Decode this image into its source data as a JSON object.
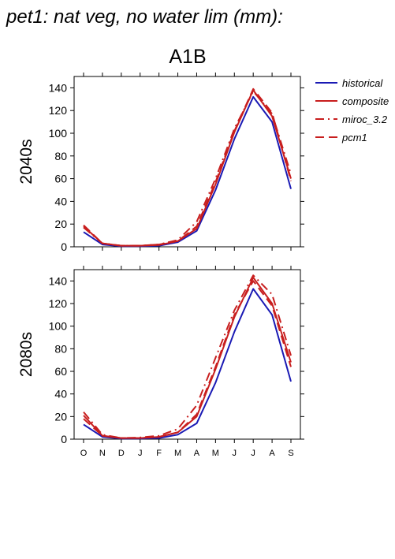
{
  "figure_title": "pet1: nat veg, no water lim (mm):",
  "scenario_title": "A1B",
  "colors": {
    "historical": "#1a1ab4",
    "future": "#c81e1e"
  },
  "legend": [
    {
      "label": "historical",
      "color": "#1a1ab4",
      "dash": "solid"
    },
    {
      "label": "composite",
      "color": "#c81e1e",
      "dash": "solid"
    },
    {
      "label": "miroc_3.2",
      "color": "#c81e1e",
      "dash": "dashdot"
    },
    {
      "label": "pcm1",
      "color": "#c81e1e",
      "dash": "dash"
    }
  ],
  "chart_data": [
    {
      "type": "line",
      "row_label": "2040s",
      "categories": [
        "O",
        "N",
        "D",
        "J",
        "F",
        "M",
        "A",
        "M",
        "J",
        "J",
        "A",
        "S"
      ],
      "ylim": [
        0,
        150
      ],
      "yticks": [
        0,
        20,
        40,
        60,
        80,
        100,
        120,
        140
      ],
      "series": [
        {
          "name": "historical",
          "color": "#1a1ab4",
          "dash": "solid",
          "values": [
            13,
            2,
            0.5,
            0.5,
            1,
            4,
            14,
            50,
            95,
            132,
            110,
            51
          ]
        },
        {
          "name": "composite",
          "color": "#c81e1e",
          "dash": "solid",
          "values": [
            18,
            3,
            1,
            1,
            1.5,
            5,
            16,
            55,
            101,
            138,
            115,
            60
          ]
        },
        {
          "name": "miroc_3.2",
          "color": "#c81e1e",
          "dash": "dashdot",
          "values": [
            17,
            3,
            1,
            1,
            2,
            6,
            22,
            60,
            104,
            137,
            117,
            64
          ]
        },
        {
          "name": "pcm1",
          "color": "#c81e1e",
          "dash": "dash",
          "values": [
            19,
            3,
            1,
            1,
            2,
            5,
            18,
            57,
            102,
            139,
            118,
            58
          ]
        }
      ]
    },
    {
      "type": "line",
      "row_label": "2080s",
      "categories": [
        "O",
        "N",
        "D",
        "J",
        "F",
        "M",
        "A",
        "M",
        "J",
        "J",
        "A",
        "S"
      ],
      "ylim": [
        0,
        150
      ],
      "yticks": [
        0,
        20,
        40,
        60,
        80,
        100,
        120,
        140
      ],
      "series": [
        {
          "name": "historical",
          "color": "#1a1ab4",
          "dash": "solid",
          "values": [
            13,
            2,
            0.5,
            0.5,
            1,
            4,
            14,
            50,
            95,
            133,
            110,
            51
          ]
        },
        {
          "name": "composite",
          "color": "#c81e1e",
          "dash": "solid",
          "values": [
            21,
            3,
            1,
            1,
            2,
            6,
            20,
            62,
            108,
            143,
            120,
            68
          ]
        },
        {
          "name": "miroc_3.2",
          "color": "#c81e1e",
          "dash": "dashdot",
          "values": [
            24,
            4,
            1,
            1.5,
            3,
            9,
            30,
            72,
            114,
            145,
            128,
            74
          ]
        },
        {
          "name": "pcm1",
          "color": "#c81e1e",
          "dash": "dash",
          "values": [
            18,
            3,
            1,
            1,
            2,
            6,
            22,
            64,
            110,
            140,
            118,
            64
          ]
        }
      ]
    }
  ]
}
